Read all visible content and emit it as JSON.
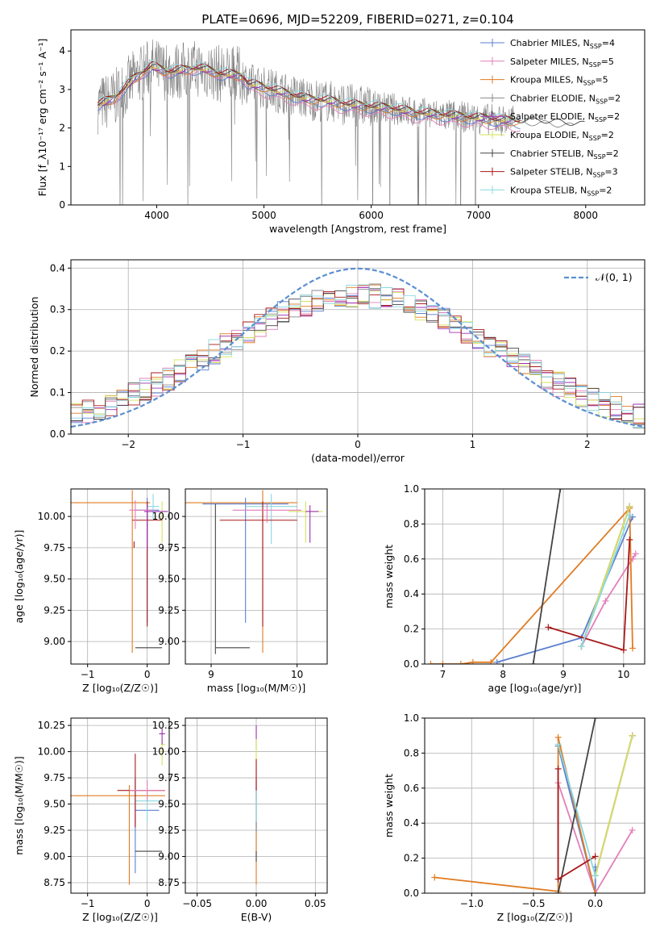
{
  "colors": {
    "chabrier_miles": "#5b7fd0",
    "salpeter_miles": "#e37fb8",
    "kroupa_miles": "#e07b22",
    "chabrier_elodie": "#8a8a8a",
    "salpeter_elodie": "#9b30b0",
    "kroupa_elodie": "#d6e35a",
    "chabrier_stelib": "#444444",
    "salpeter_stelib": "#a81818",
    "kroupa_stelib": "#88d8e0",
    "data": "#808080",
    "normal": "#5b8fd0"
  },
  "chart_data": [
    {
      "type": "line",
      "id": "spectrum",
      "title": "PLATE=0696, MJD=52209, FIBERID=0271, z=0.104",
      "xlabel": "wavelength [Angstrom, rest frame]",
      "ylabel": "Flux [f_λ10⁻¹⁷ erg cm⁻² s⁻¹ A⁻¹]",
      "xlim": [
        3200,
        8550
      ],
      "ylim": [
        0,
        4.55
      ],
      "xticks": [
        "4000",
        "5000",
        "6000",
        "7000",
        "8000"
      ],
      "yticks": [
        "0",
        "1",
        "2",
        "3",
        "4"
      ],
      "legend_position": "top-right",
      "legend": [
        {
          "name": "Chabrier MILES",
          "nssp": "4"
        },
        {
          "name": "Salpeter MILES",
          "nssp": "5"
        },
        {
          "name": "Kroupa MILES",
          "nssp": "5"
        },
        {
          "name": "Chabrier ELODIE",
          "nssp": "2"
        },
        {
          "name": "Salpeter ELODIE",
          "nssp": "2"
        },
        {
          "name": "Kroupa ELODIE",
          "nssp": "2"
        },
        {
          "name": "Chabrier STELIB",
          "nssp": "2"
        },
        {
          "name": "Salpeter STELIB",
          "nssp": "3"
        },
        {
          "name": "Kroupa STELIB",
          "nssp": "2"
        }
      ],
      "legend_sub": "SSP",
      "legend_prefix": "N",
      "model_continuum": {
        "x": [
          3450,
          3600,
          3800,
          3950,
          4100,
          4250,
          4400,
          4600,
          4800,
          4850,
          5000,
          5200,
          5400,
          5600,
          5800,
          6000,
          6200,
          6400,
          6600,
          6800,
          7000,
          7200,
          7400,
          7600,
          7800,
          8000,
          8200,
          8500
        ],
        "y": [
          2.6,
          2.75,
          3.3,
          3.6,
          3.45,
          3.5,
          3.55,
          3.4,
          3.35,
          3.15,
          3.05,
          2.9,
          2.75,
          2.7,
          2.6,
          2.55,
          2.5,
          2.4,
          2.35,
          2.3,
          2.25,
          2.2,
          2.15,
          2.15,
          2.1,
          2.05,
          2.0,
          1.95
        ]
      }
    },
    {
      "type": "step",
      "id": "residuals",
      "xlabel": "(data-model)/error",
      "ylabel": "Normed distribution",
      "xlim": [
        -2.5,
        2.5
      ],
      "ylim": [
        0,
        0.42
      ],
      "xticks": [
        "−2",
        "−1",
        "0",
        "1",
        "2"
      ],
      "yticks": [
        "0.0",
        "0.1",
        "0.2",
        "0.3",
        "0.4"
      ],
      "legend": [
        {
          "name": "𝒩(0, 1)"
        }
      ],
      "legend_position": "top-right",
      "bin_width": 0.1
    },
    {
      "type": "scatter",
      "id": "age-vs-Z",
      "xlabel": "Z [log₁₀(Z/Z☉)]",
      "ylabel": "age  [log₁₀(age/yr)]",
      "xlim": [
        -1.28,
        0.37
      ],
      "ylim": [
        8.82,
        10.22
      ],
      "xticks": [
        "−1",
        "0"
      ],
      "yticks": [
        "9.00",
        "9.25",
        "9.50",
        "9.75",
        "10.00"
      ]
    },
    {
      "type": "scatter",
      "id": "age-vs-mass",
      "xlabel": "mass [log₁₀(M/M☉)]",
      "xlim": [
        8.7,
        10.35
      ],
      "ylim": [
        8.82,
        10.22
      ],
      "xticks": [
        "9",
        "10"
      ],
      "yticks": [
        "9.00",
        "9.25",
        "9.50",
        "9.75",
        "10.00"
      ]
    },
    {
      "type": "line",
      "id": "mass-weight-vs-age",
      "xlabel": "age  [log₁₀(age/yr)]",
      "ylabel": "mass weight",
      "xlim": [
        6.7,
        10.35
      ],
      "ylim": [
        0,
        1.0
      ],
      "xticks": [
        "7",
        "8",
        "9",
        "10"
      ],
      "yticks": [
        "0.0",
        "0.2",
        "0.4",
        "0.6",
        "0.8",
        "1.0"
      ]
    },
    {
      "type": "scatter",
      "id": "mass-vs-Z",
      "xlabel": "Z [log₁₀(Z/Z☉)]",
      "ylabel": "mass [log₁₀(M/M☉)]",
      "xlim": [
        -1.28,
        0.37
      ],
      "ylim": [
        8.65,
        10.32
      ],
      "xticks": [
        "−1",
        "0"
      ],
      "yticks": [
        "8.75",
        "9.00",
        "9.25",
        "9.50",
        "9.75",
        "10.00",
        "10.25"
      ]
    },
    {
      "type": "scatter",
      "id": "mass-vs-ebv",
      "xlabel": "E(B-V)",
      "xlim": [
        -0.06,
        0.06
      ],
      "ylim": [
        8.65,
        10.32
      ],
      "xticks": [
        "−0.05",
        "0.00",
        "0.05"
      ],
      "yticks": [
        "8.75",
        "9.00",
        "9.25",
        "9.50",
        "9.75",
        "10.00",
        "10.25"
      ]
    },
    {
      "type": "line",
      "id": "mass-weight-vs-Z",
      "xlabel": "Z [log₁₀(Z/Z☉)]",
      "ylabel": "mass weight",
      "xlim": [
        -1.38,
        0.4
      ],
      "ylim": [
        0,
        1.0
      ],
      "xticks": [
        "−1.0",
        "−0.5",
        "0.0"
      ],
      "yticks": [
        "0.0",
        "0.2",
        "0.4",
        "0.6",
        "0.8",
        "1.0"
      ]
    }
  ]
}
